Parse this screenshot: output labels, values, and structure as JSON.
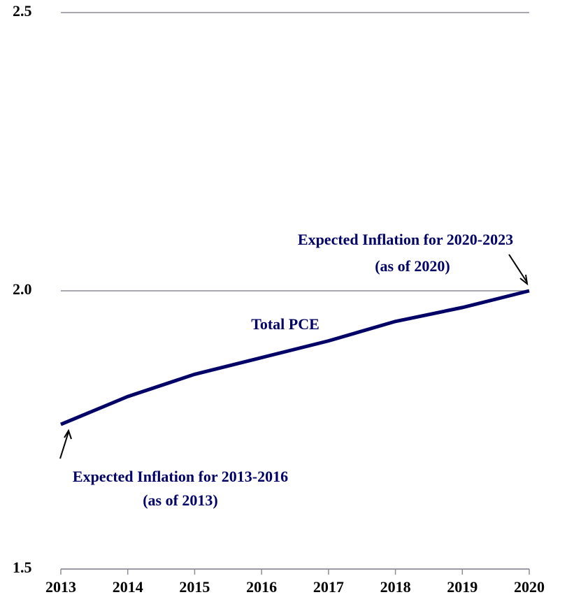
{
  "chart_data": {
    "type": "line",
    "categories": [
      "2013",
      "2014",
      "2015",
      "2016",
      "2017",
      "2018",
      "2019",
      "2020"
    ],
    "series": [
      {
        "name": "Total PCE",
        "color": "#000066",
        "values": [
          1.76,
          1.81,
          1.85,
          1.88,
          1.91,
          1.945,
          1.97,
          2.0
        ]
      }
    ],
    "ylim": [
      1.5,
      2.5
    ],
    "yticks": [
      1.5,
      {
        "value": 2.0,
        "label": "2.0"
      },
      2.5
    ],
    "grid": true,
    "annotations": [
      {
        "lines": [
          "Expected Inflation for 2020-2023",
          "(as of 2020)"
        ]
      },
      {
        "lines": [
          "Expected Inflation for 2013-2016",
          "(as of 2013)"
        ]
      }
    ]
  }
}
